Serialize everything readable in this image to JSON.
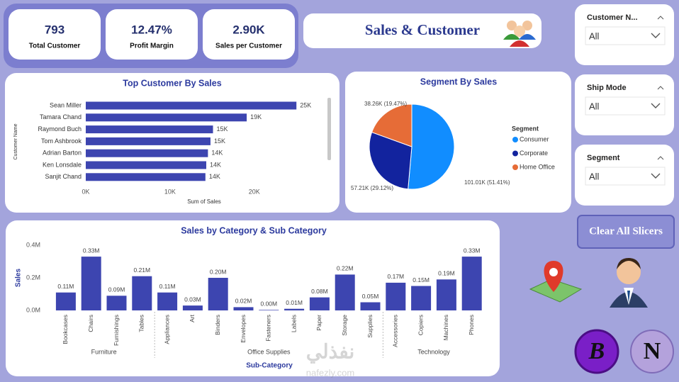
{
  "header": {
    "title": "Sales & Customer"
  },
  "kpis": [
    {
      "value": "793",
      "label": "Total Customer"
    },
    {
      "value": "12.47%",
      "label": "Profit Margin"
    },
    {
      "value": "2.90K",
      "label": "Sales per Customer"
    }
  ],
  "slicers": [
    {
      "title": "Customer N...",
      "value": "All"
    },
    {
      "title": "Ship Mode",
      "value": "All"
    },
    {
      "title": "Segment",
      "value": "All"
    }
  ],
  "button": "Clear All Slicers",
  "badges": [
    "B",
    "N"
  ],
  "watermark": [
    "نفذلي",
    "nafezly.com"
  ],
  "chart_data": [
    {
      "type": "bar",
      "orientation": "horizontal",
      "title": "Top Customer By Sales",
      "ylabel": "Customer Name",
      "xlabel": "Sum of Sales",
      "categories": [
        "Sean Miller",
        "Tamara Chand",
        "Raymond Buch",
        "Tom Ashbrook",
        "Adrian Barton",
        "Ken Lonsdale",
        "Sanjit Chand"
      ],
      "values": [
        25000,
        19100,
        15100,
        14800,
        14500,
        14300,
        14200
      ],
      "value_labels": [
        "25K",
        "19K",
        "15K",
        "15K",
        "14K",
        "14K",
        "14K"
      ],
      "color": "#3d45b0",
      "xlim": [
        0,
        27000
      ],
      "xticks": [
        {
          "value": 0,
          "label": "0K"
        },
        {
          "value": 10000,
          "label": "10K"
        },
        {
          "value": 20000,
          "label": "20K"
        }
      ]
    },
    {
      "type": "pie",
      "title": "Segment By Sales",
      "legend_title": "Segment",
      "categories": [
        "Consumer",
        "Corporate",
        "Home Office"
      ],
      "values": [
        101010,
        57210,
        38260
      ],
      "value_labels": [
        "101.01K (51.41%)",
        "57.21K (29.12%)",
        "38.26K (19.47%)"
      ],
      "colors": [
        "#118dff",
        "#12239e",
        "#e66c37"
      ]
    },
    {
      "type": "bar",
      "orientation": "vertical",
      "title": "Sales by Category & Sub Category",
      "ylabel": "Sales",
      "xlabel": "Sub-Category",
      "categories": [
        "Bookcases",
        "Chairs",
        "Furnishings",
        "Tables",
        "Appliances",
        "Art",
        "Binders",
        "Envelopes",
        "Fasteners",
        "Labels",
        "Paper",
        "Storage",
        "Supplies",
        "Accessories",
        "Copiers",
        "Machines",
        "Phones"
      ],
      "category_groups": [
        "Furniture",
        "Furniture",
        "Furniture",
        "Furniture",
        "Office Supplies",
        "Office Supplies",
        "Office Supplies",
        "Office Supplies",
        "Office Supplies",
        "Office Supplies",
        "Office Supplies",
        "Office Supplies",
        "Office Supplies",
        "Technology",
        "Technology",
        "Technology",
        "Technology"
      ],
      "values": [
        110000,
        330000,
        90000,
        210000,
        110000,
        30000,
        200000,
        20000,
        3000,
        10000,
        80000,
        220000,
        50000,
        170000,
        150000,
        190000,
        330000
      ],
      "value_labels": [
        "0.11M",
        "0.33M",
        "0.09M",
        "0.21M",
        "0.11M",
        "0.03M",
        "0.20M",
        "0.02M",
        "0.00M",
        "0.01M",
        "0.08M",
        "0.22M",
        "0.05M",
        "0.17M",
        "0.15M",
        "0.19M",
        "0.33M"
      ],
      "color": "#3d45b0",
      "ylim": [
        0,
        400000
      ],
      "yticks": [
        {
          "value": 0,
          "label": "0.0M"
        },
        {
          "value": 200000,
          "label": "0.2M"
        },
        {
          "value": 400000,
          "label": "0.4M"
        }
      ]
    }
  ]
}
